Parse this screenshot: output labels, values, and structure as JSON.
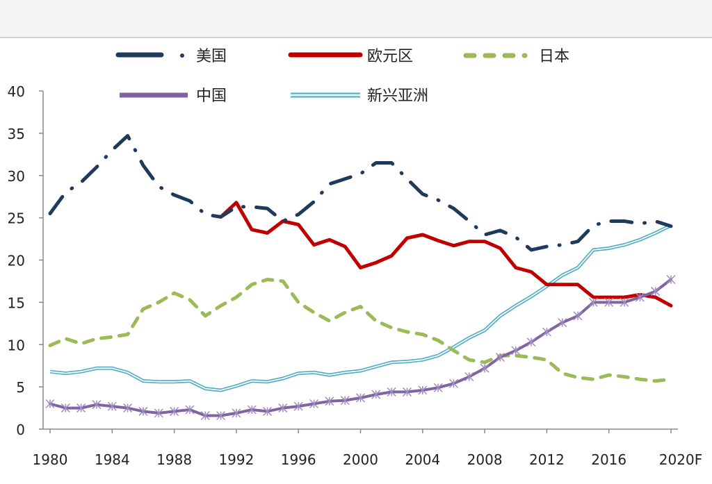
{
  "chart_data": {
    "type": "line",
    "title": "",
    "xlabel": "",
    "ylabel": "",
    "ylim": [
      0,
      40
    ],
    "yticks": [
      "0",
      "5",
      "10",
      "15",
      "20",
      "25",
      "30",
      "35",
      "40"
    ],
    "xticks": [
      "1980",
      "1984",
      "1988",
      "1992",
      "1996",
      "2000",
      "2004",
      "2008",
      "2012",
      "2016",
      "2020F"
    ],
    "x_start": 1980,
    "x_end": 2020,
    "legend_position": "top",
    "series": [
      {
        "name": "美国",
        "color": "#1F3A5A",
        "style": "dash-dot",
        "start": 1980,
        "values": [
          25.5,
          28,
          29.2,
          31,
          33,
          34.7,
          31.2,
          28.7,
          27.7,
          27,
          25.4,
          25.1,
          26.3,
          26.3,
          26.1,
          24.6,
          25.4,
          26.9,
          29,
          29.6,
          30.2,
          31.5,
          31.5,
          29.6,
          27.8,
          27.1,
          26.1,
          24.6,
          23,
          23.5,
          22.7,
          21.2,
          21.6,
          21.8,
          22.2,
          24.1,
          24.6,
          24.6,
          24.3,
          24.6,
          24
        ]
      },
      {
        "name": "欧元区",
        "color": "#C00000",
        "style": "solid",
        "start": 1991,
        "values": [
          25.1,
          26.8,
          23.6,
          23.2,
          24.6,
          24.2,
          21.8,
          22.4,
          21.6,
          19.1,
          19.7,
          20.5,
          22.6,
          23,
          22.3,
          21.7,
          22.2,
          22.2,
          21.4,
          19.1,
          18.6,
          17.1,
          17.1,
          17.1,
          15.6,
          15.6,
          15.6,
          15.9,
          15.6,
          14.6
        ]
      },
      {
        "name": "日本",
        "color": "#9BBB59",
        "style": "dashed",
        "start": 1980,
        "values": [
          9.9,
          10.7,
          10.1,
          10.7,
          10.9,
          11.2,
          14.2,
          15,
          16.1,
          15.3,
          13.4,
          14.6,
          15.6,
          17.1,
          17.7,
          17.5,
          15,
          13.8,
          12.8,
          13.8,
          14.5,
          12.8,
          12,
          11.5,
          11.2,
          10.5,
          9.3,
          8.2,
          7.9,
          8.7,
          8.7,
          8.5,
          8.2,
          6.6,
          6.1,
          5.9,
          6.4,
          6.2,
          5.9,
          5.7,
          5.9
        ]
      },
      {
        "name": "中国",
        "color": "#8064A2",
        "style": "asterisk-markers",
        "start": 1980,
        "values": [
          3,
          2.5,
          2.5,
          2.9,
          2.7,
          2.5,
          2.1,
          1.9,
          2.1,
          2.3,
          1.6,
          1.6,
          1.9,
          2.3,
          2.1,
          2.5,
          2.7,
          3,
          3.3,
          3.4,
          3.7,
          4.1,
          4.4,
          4.4,
          4.6,
          4.9,
          5.4,
          6.2,
          7.2,
          8.5,
          9.3,
          10.3,
          11.5,
          12.6,
          13.4,
          15,
          15,
          15,
          15.6,
          16.3,
          17.7
        ]
      },
      {
        "name": "新兴亚洲",
        "color": "#4BACC6",
        "style": "double",
        "start": 1980,
        "values": [
          6.8,
          6.6,
          6.8,
          7.2,
          7.2,
          6.7,
          5.7,
          5.6,
          5.6,
          5.7,
          4.8,
          4.6,
          5.1,
          5.7,
          5.6,
          6,
          6.6,
          6.7,
          6.4,
          6.7,
          6.9,
          7.4,
          7.9,
          8,
          8.2,
          8.7,
          9.7,
          10.8,
          11.7,
          13.4,
          14.6,
          15.7,
          16.9,
          18.2,
          19.1,
          21.2,
          21.4,
          21.8,
          22.4,
          23.2,
          24.1
        ]
      }
    ]
  }
}
